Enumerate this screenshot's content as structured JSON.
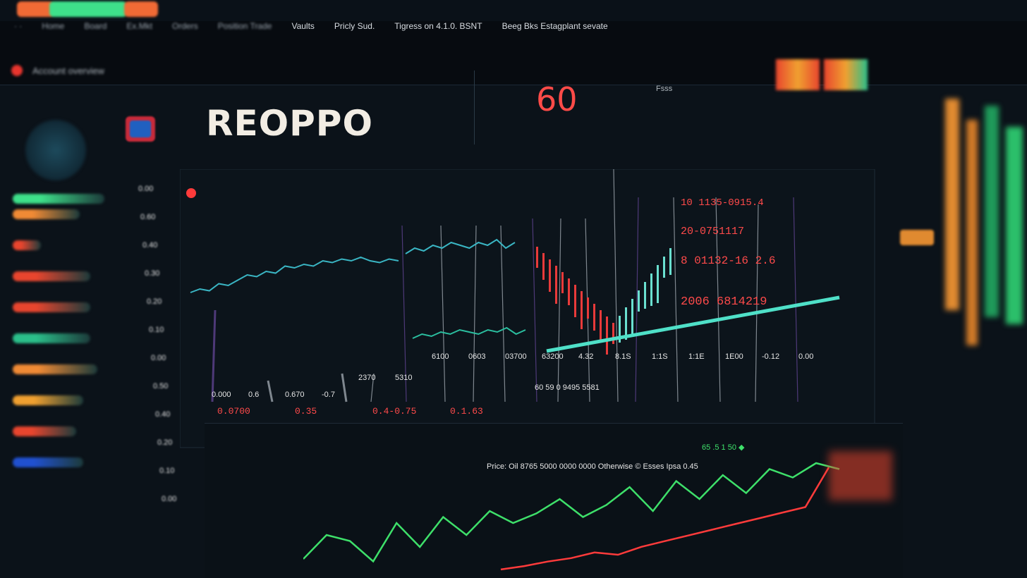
{
  "topbar": {
    "pills": [
      "#f06a35",
      "#3ee08a",
      "#f06a35"
    ]
  },
  "nav": {
    "items": [
      "· ·",
      "Home",
      "Board",
      "Ex.Mkt",
      "Orders",
      "Position Trade",
      "Vaults",
      "Pricly Sud.",
      "Tigress on 4.1.0. BSNT",
      "Beeg Bks Estagplant sevate"
    ]
  },
  "account": {
    "label": "Account overview"
  },
  "brand": {
    "logo": "REOPPO",
    "headline_value": "60",
    "headline_unit": "Fsss"
  },
  "sidebar": {
    "bars": [
      {
        "color": "#3ee08a",
        "width": 130
      },
      {
        "color": "#f08a35",
        "width": 95
      },
      {
        "color": "#e8452e",
        "width": 40
      },
      {
        "color": "#e8452e",
        "width": 110
      },
      {
        "color": "#e8452e",
        "width": 110
      },
      {
        "color": "#2bbf8a",
        "width": 110
      },
      {
        "color": "#f08a35",
        "width": 120
      },
      {
        "color": "#f0a030",
        "width": 100
      },
      {
        "color": "#e8452e",
        "width": 90
      },
      {
        "color": "#2050d0",
        "width": 100
      }
    ]
  },
  "scale": {
    "labels": [
      "0.00",
      "0.60",
      "0.40",
      "0.30",
      "0.20",
      "0.10",
      "0.00",
      "0.50",
      "0.40",
      "0.20",
      "0.10",
      "0.00"
    ]
  },
  "chart": {
    "price_labels": [
      "10 1135-0915.4",
      "20-0751117",
      "8 01132-16 2.6",
      "2006 6814219"
    ],
    "x_labels": [
      "0.000",
      "0.6",
      "0.670",
      "-0.7",
      "2370",
      "5310",
      "6100",
      "0603",
      "03700",
      "63200",
      "4.32",
      "8.1S",
      "1:1S",
      "1:1E",
      "1E00",
      "-0.12",
      "0.00"
    ],
    "red_labels": [
      "0.0700",
      "0.35",
      "0.4-0.75",
      "0.1.63"
    ],
    "footer": "60 59 0 9495 5581",
    "line_a": [
      40,
      42,
      41,
      45,
      44,
      47,
      50,
      49,
      52,
      51,
      55,
      54,
      56,
      55,
      58,
      57,
      59,
      58,
      60,
      58,
      57,
      59,
      58
    ],
    "line_b": [
      70,
      72,
      71,
      73,
      72,
      74,
      73,
      72,
      74,
      73,
      75,
      72,
      74
    ],
    "trend": [
      0,
      100
    ],
    "color_line": "#3ab6c4",
    "color_trend": "#4fe0c8"
  },
  "bottom": {
    "header": "Price: Oil 8765 5000 0000 0000 Otherwise © Esses Ipsa 0.45",
    "gain": "65 .5 1 50 ◆",
    "green_line": [
      10,
      30,
      25,
      8,
      40,
      20,
      45,
      30,
      50,
      40,
      48,
      60,
      45,
      55,
      70,
      50,
      75,
      60,
      80,
      65,
      85,
      78,
      90,
      85
    ],
    "red_line": [
      5,
      8,
      12,
      15,
      20,
      18,
      25,
      30,
      35,
      40,
      45,
      50,
      55,
      60,
      95
    ],
    "color_green": "#3ee06a",
    "color_red": "#ff3b3b"
  }
}
